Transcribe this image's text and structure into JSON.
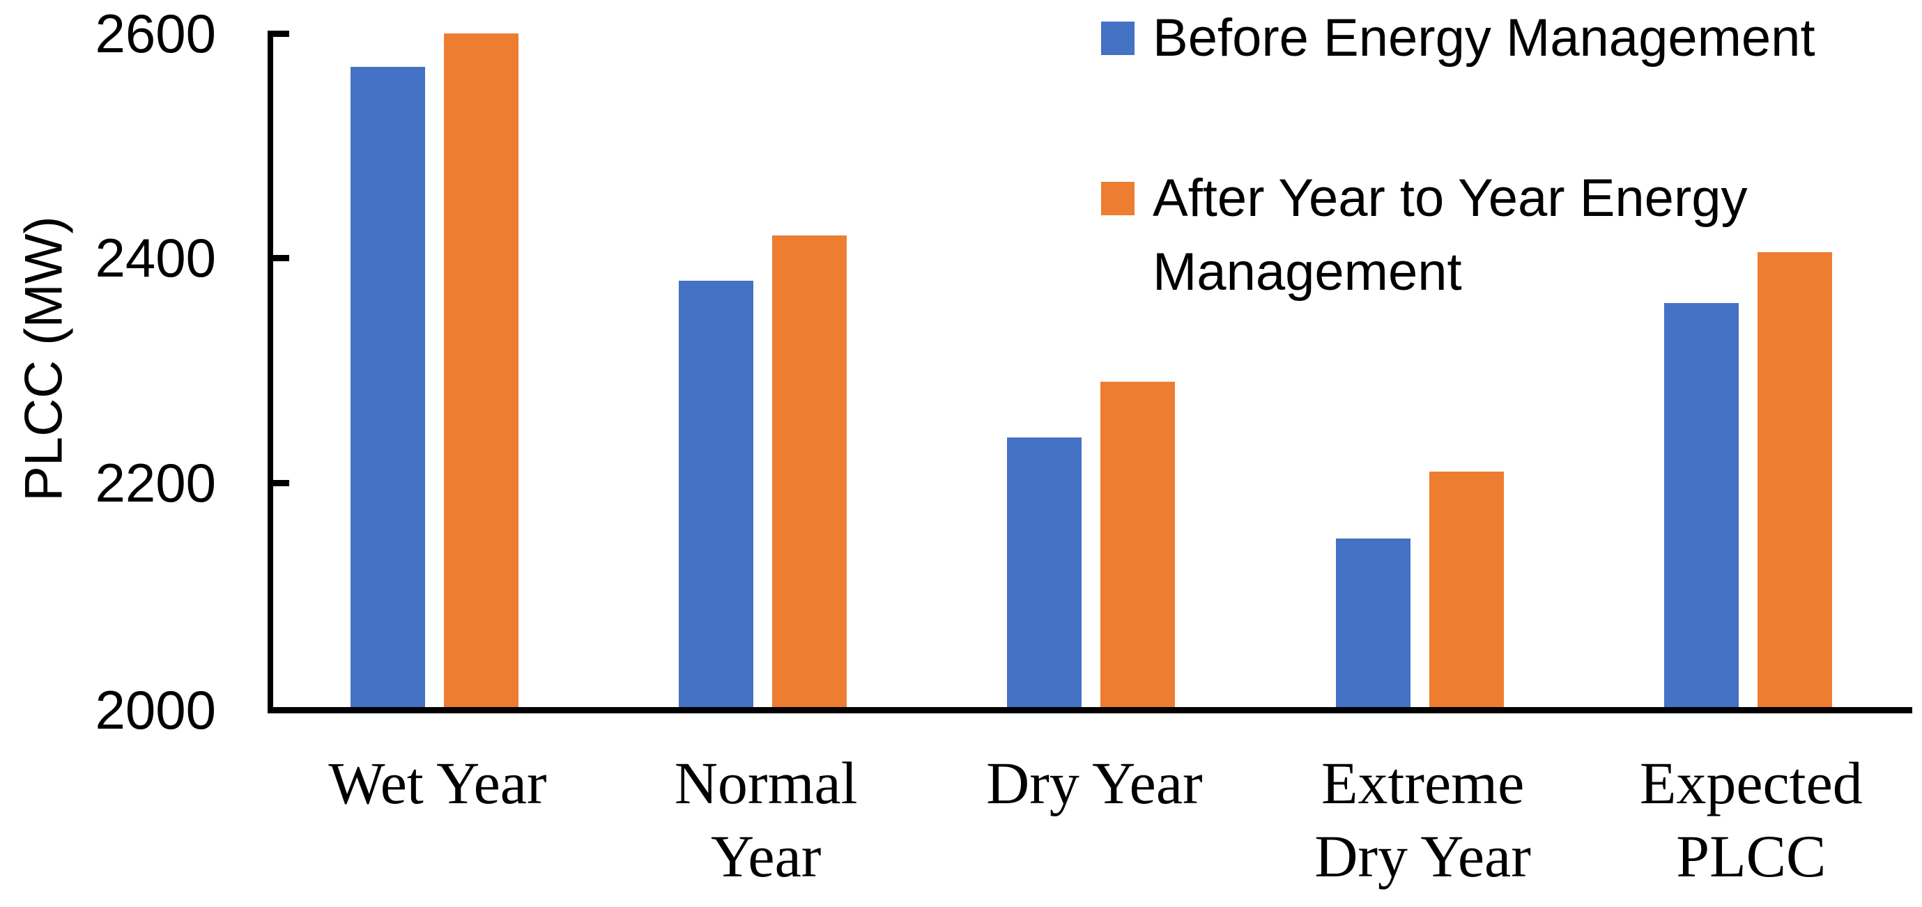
{
  "chart_data": {
    "type": "bar",
    "title": "",
    "categories": [
      "Wet Year",
      "Normal Year",
      "Dry Year",
      "Extreme Dry Year",
      "Expected PLCC"
    ],
    "series": [
      {
        "name": "Before Energy Management",
        "color": "#4472C4",
        "values": [
          2570,
          2380,
          2240,
          2150,
          2360
        ]
      },
      {
        "name": "After Year to Year Energy Management",
        "color": "#ED7D31",
        "values": [
          2600,
          2420,
          2290,
          2210,
          2405
        ]
      }
    ],
    "xlabel": "",
    "ylabel": "PLCC (MW)",
    "ylim": [
      2000,
      2600
    ],
    "yticks": [
      2000,
      2200,
      2400,
      2600
    ],
    "grid": false,
    "legend_position": "top-right",
    "axis_color": "#000000",
    "background_color": "#FFFFFF"
  }
}
